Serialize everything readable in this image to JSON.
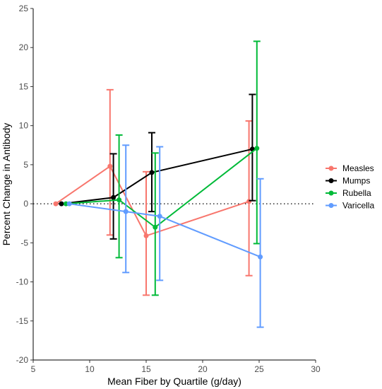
{
  "chart_data": {
    "type": "line",
    "xlabel": "Mean Fiber by Quartile (g/day)",
    "ylabel": "Percent Change in Antibody",
    "xlim": [
      5,
      30
    ],
    "ylim": [
      -20,
      25
    ],
    "xticks": [
      "5",
      "10",
      "15",
      "20",
      "25",
      "30"
    ],
    "yticks": [
      "-20",
      "-15",
      "-10",
      "-5",
      "0",
      "5",
      "10",
      "15",
      "20",
      "25"
    ],
    "reference_line": {
      "y": 0,
      "style": "dotted"
    },
    "grid": false,
    "legend_position": "right",
    "series": [
      {
        "name": "Measles",
        "color": "#F8766D",
        "points": [
          {
            "x": 7.0,
            "y": 0.0,
            "lo": 0.0,
            "hi": 0.0
          },
          {
            "x": 11.8,
            "y": 4.8,
            "lo": -4.0,
            "hi": 14.6
          },
          {
            "x": 15.0,
            "y": -4.1,
            "lo": -11.7,
            "hi": 4.1
          },
          {
            "x": 24.1,
            "y": 0.3,
            "lo": -9.2,
            "hi": 10.6
          }
        ]
      },
      {
        "name": "Mumps",
        "color": "#000000",
        "points": [
          {
            "x": 7.5,
            "y": 0.0,
            "lo": 0.0,
            "hi": 0.0
          },
          {
            "x": 12.1,
            "y": 0.8,
            "lo": -4.5,
            "hi": 6.4
          },
          {
            "x": 15.5,
            "y": 4.0,
            "lo": -1.0,
            "hi": 9.1
          },
          {
            "x": 24.4,
            "y": 7.0,
            "lo": 0.4,
            "hi": 14.0
          }
        ]
      },
      {
        "name": "Rubella",
        "color": "#00BA38",
        "points": [
          {
            "x": 7.9,
            "y": 0.0,
            "lo": 0.0,
            "hi": 0.0
          },
          {
            "x": 12.6,
            "y": 0.5,
            "lo": -6.9,
            "hi": 8.8
          },
          {
            "x": 15.8,
            "y": -3.0,
            "lo": -11.7,
            "hi": 6.5
          },
          {
            "x": 24.8,
            "y": 7.1,
            "lo": -5.1,
            "hi": 20.8
          }
        ]
      },
      {
        "name": "Varicella",
        "color": "#619CFF",
        "points": [
          {
            "x": 8.2,
            "y": 0.0,
            "lo": 0.0,
            "hi": 0.0
          },
          {
            "x": 13.2,
            "y": -1.0,
            "lo": -8.8,
            "hi": 7.5
          },
          {
            "x": 16.2,
            "y": -1.6,
            "lo": -9.8,
            "hi": 7.3
          },
          {
            "x": 25.1,
            "y": -6.8,
            "lo": -15.8,
            "hi": 3.2
          }
        ]
      }
    ]
  }
}
